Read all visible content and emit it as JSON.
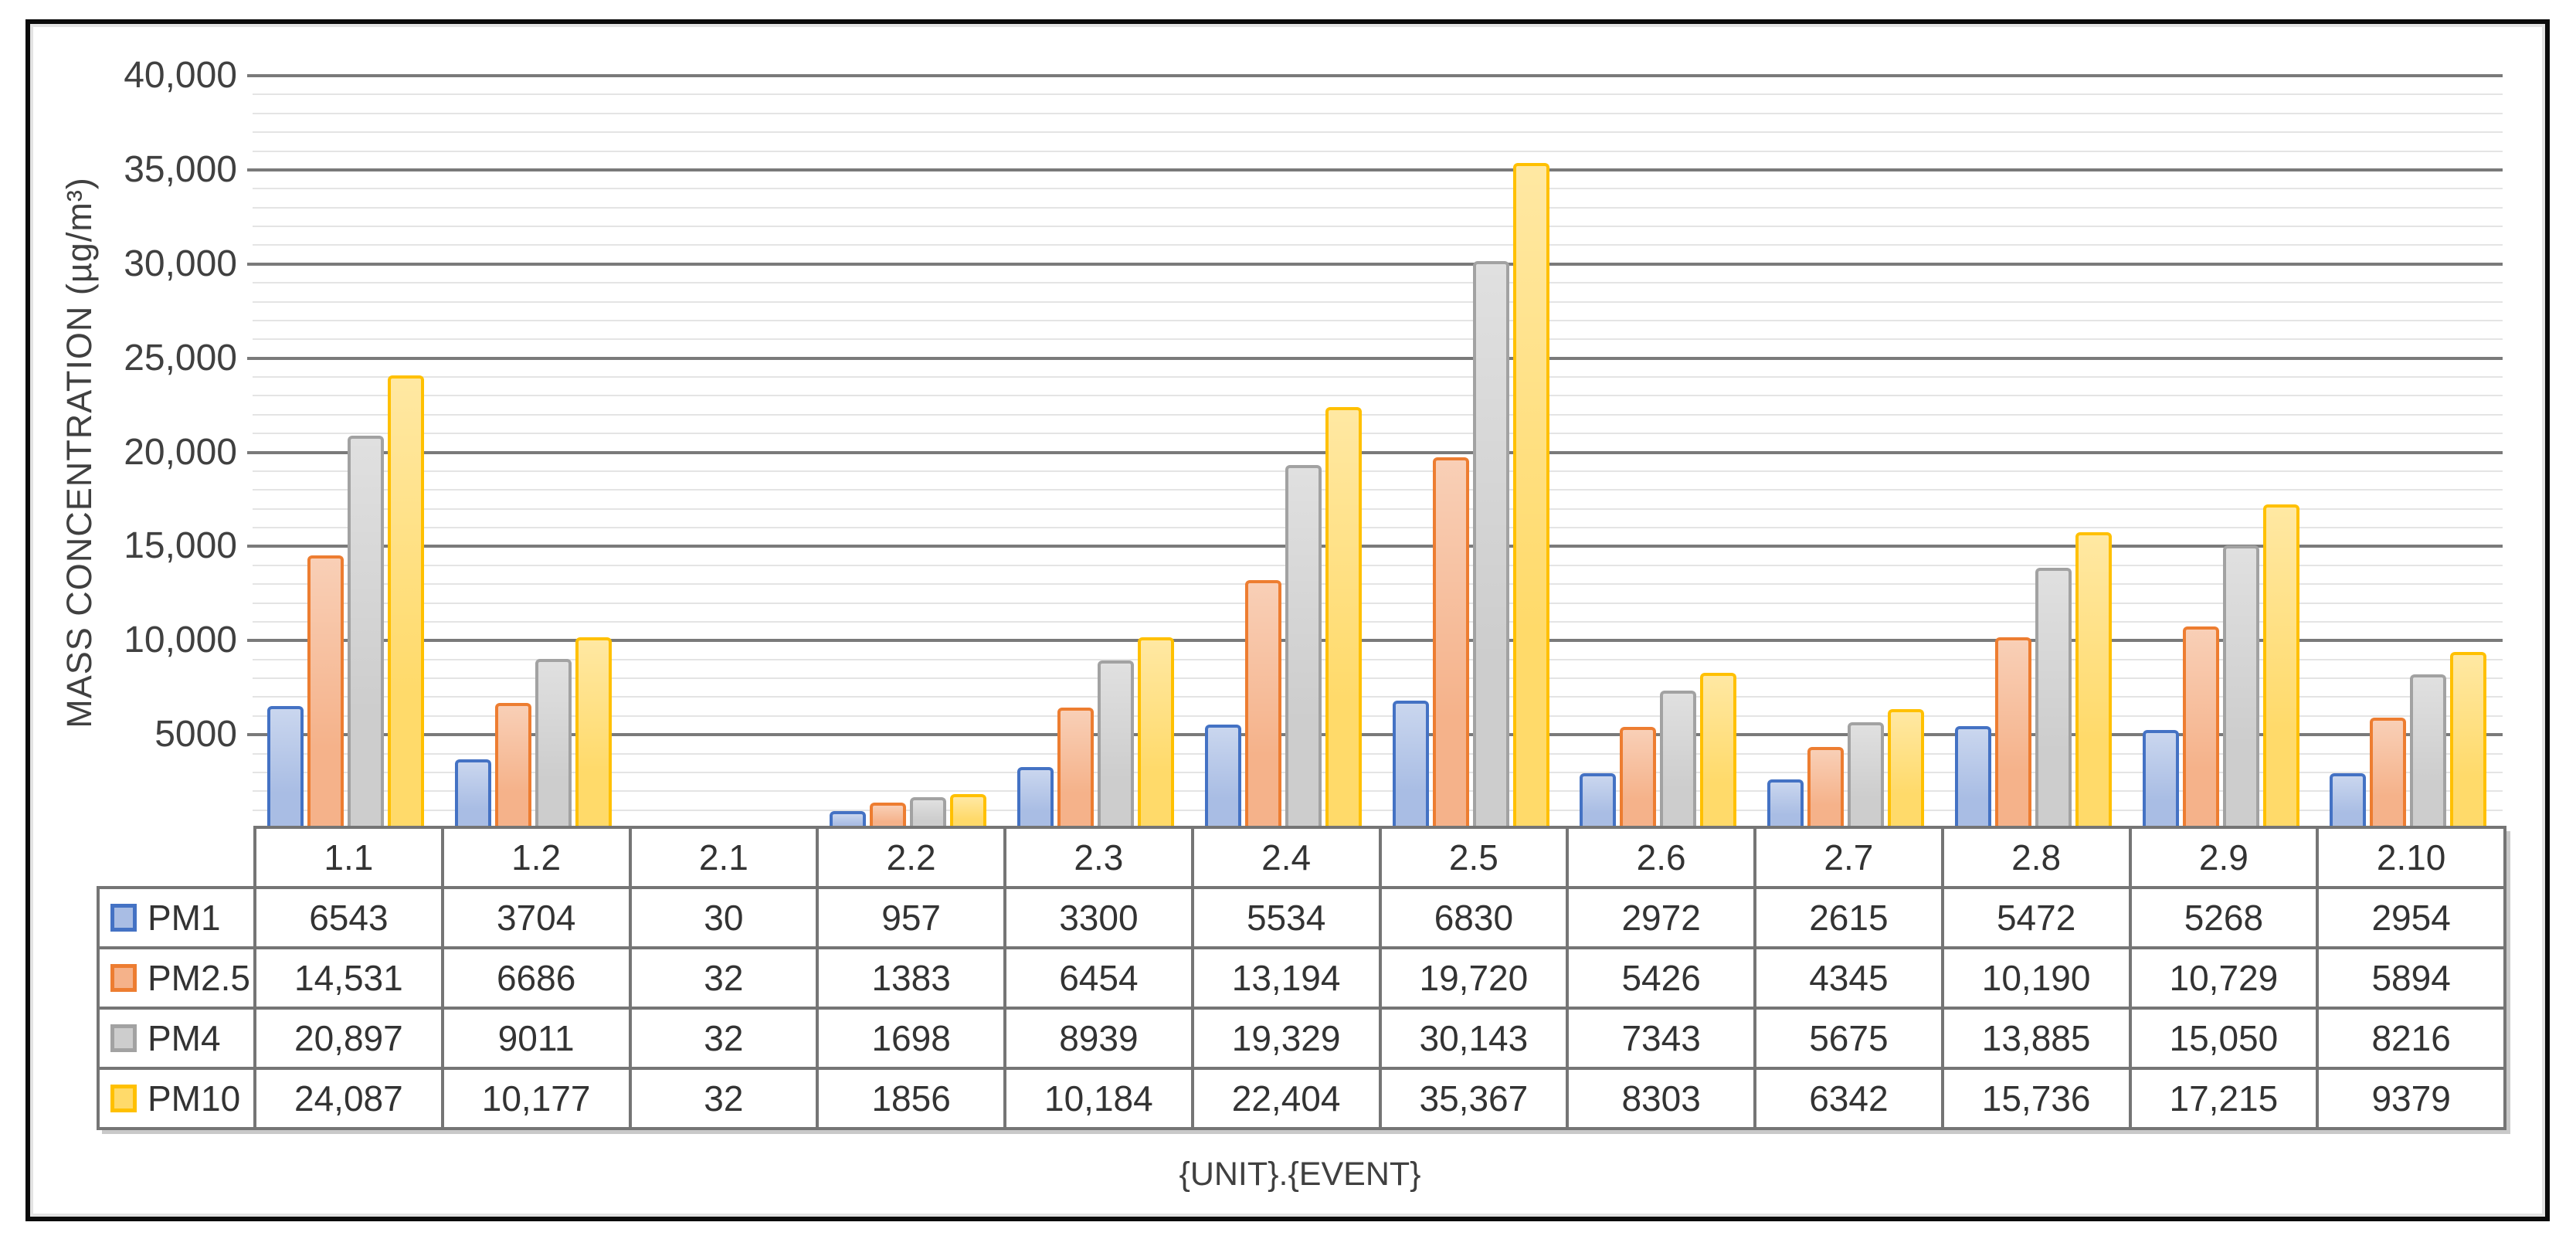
{
  "y_axis": {
    "title": "MASS CONCENTRATION (µg/m³)",
    "tick_labels": [
      "40,000",
      "35,000",
      "30,000",
      "25,000",
      "20,000",
      "15,000",
      "10,000",
      "5000"
    ]
  },
  "x_axis": {
    "title": "{UNIT}.{EVENT}"
  },
  "chart_data": {
    "type": "bar",
    "title": "",
    "xlabel": "{UNIT}.{EVENT}",
    "ylabel": "MASS CONCENTRATION (µg/m³)",
    "ylim": [
      0,
      40000
    ],
    "y_major_unit": 5000,
    "y_minor_unit": 1000,
    "y_tick_labels": [
      "40,000",
      "35,000",
      "30,000",
      "25,000",
      "20,000",
      "15,000",
      "10,000",
      "5000"
    ],
    "grid": "horizontal major (dark gray) + minor (light gray)",
    "legend_position": "data-table row headers (left)",
    "categories": [
      "1.1",
      "1.2",
      "2.1",
      "2.2",
      "2.3",
      "2.4",
      "2.5",
      "2.6",
      "2.7",
      "2.8",
      "2.9",
      "2.10"
    ],
    "series": [
      {
        "name": "PM1",
        "fill": "#A9BDE4",
        "border": "#4472C4",
        "values": [
          6543,
          3704,
          30,
          957,
          3300,
          5534,
          6830,
          2972,
          2615,
          5472,
          5268,
          2954
        ],
        "display": [
          "6543",
          "3704",
          "30",
          "957",
          "3300",
          "5534",
          "6830",
          "2972",
          "2615",
          "5472",
          "5268",
          "2954"
        ]
      },
      {
        "name": "PM2.5",
        "fill": "#F5B28A",
        "border": "#ED7D31",
        "values": [
          14531,
          6686,
          32,
          1383,
          6454,
          13194,
          19720,
          5426,
          4345,
          10190,
          10729,
          5894
        ],
        "display": [
          "14,531",
          "6686",
          "32",
          "1383",
          "6454",
          "13,194",
          "19,720",
          "5426",
          "4345",
          "10,190",
          "10,729",
          "5894"
        ]
      },
      {
        "name": "PM4",
        "fill": "#CDCDCD",
        "border": "#A2A2A2",
        "values": [
          20897,
          9011,
          32,
          1698,
          8939,
          19329,
          30143,
          7343,
          5675,
          13885,
          15050,
          8216
        ],
        "display": [
          "20,897",
          "9011",
          "32",
          "1698",
          "8939",
          "19,329",
          "30,143",
          "7343",
          "5675",
          "13,885",
          "15,050",
          "8216"
        ]
      },
      {
        "name": "PM10",
        "fill": "#FFDA6A",
        "border": "#FFC000",
        "values": [
          24087,
          10177,
          32,
          1856,
          10184,
          22404,
          35367,
          8303,
          6342,
          15736,
          17215,
          9379
        ],
        "display": [
          "24,087",
          "10,177",
          "32",
          "1856",
          "10,184",
          "22,404",
          "35,367",
          "8303",
          "6342",
          "15,736",
          "17,215",
          "9379"
        ]
      }
    ]
  }
}
